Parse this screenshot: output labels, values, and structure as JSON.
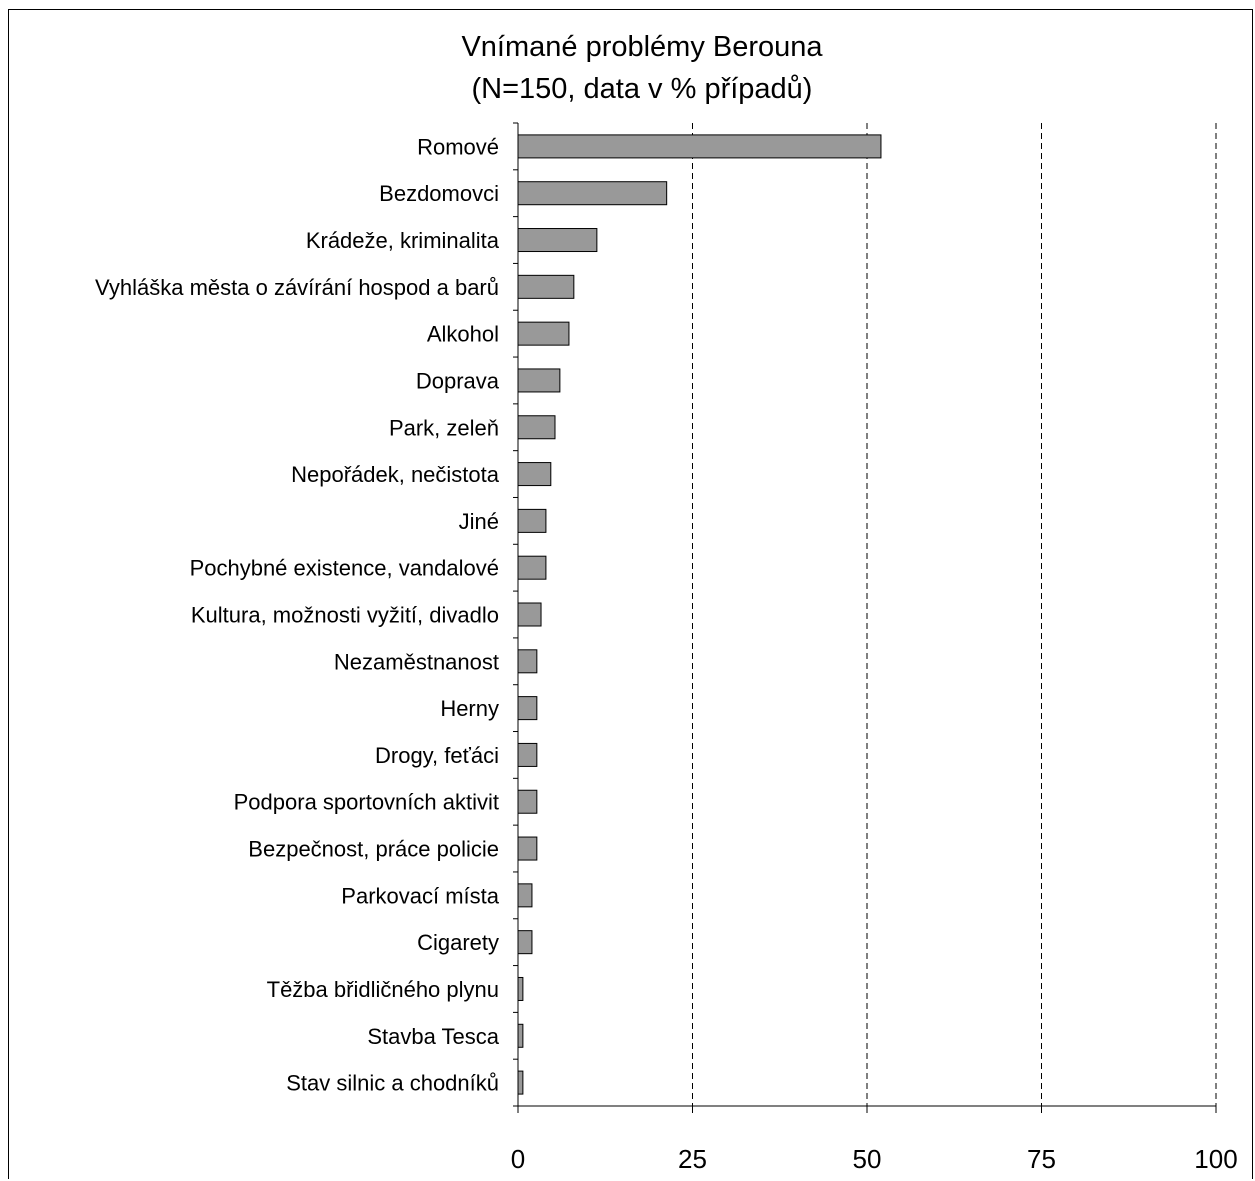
{
  "chart_data": {
    "type": "bar",
    "orientation": "horizontal",
    "title": "Vnímané problémy Berouna",
    "subtitle": "(N=150, data v % případů)",
    "xlabel": "",
    "ylabel": "",
    "xlim": [
      0,
      100
    ],
    "xticks": [
      0,
      25,
      50,
      75,
      100
    ],
    "grid": "vertical dashed",
    "legend": "none",
    "bar_color": "#999999",
    "categories": [
      "Romové",
      "Bezdomovci",
      "Krádeže, kriminalita",
      "Vyhláška města o závírání hospod a barů",
      "Alkohol",
      "Doprava",
      "Park, zeleň",
      "Nepořádek, nečistota",
      "Jiné",
      "Pochybné existence, vandalové",
      "Kultura, možnosti vyžití, divadlo",
      "Nezaměstnanost",
      "Herny",
      "Drogy, feťáci",
      "Podpora sportovních aktivit",
      "Bezpečnost, práce policie",
      "Parkovací místa",
      "Cigarety",
      "Těžba břidličného plynu",
      "Stavba Tesca",
      "Stav silnic a chodníků"
    ],
    "values": [
      52,
      21.3,
      11.3,
      8,
      7.3,
      6,
      5.3,
      4.7,
      4,
      4,
      3.3,
      2.7,
      2.7,
      2.7,
      2.7,
      2.7,
      2,
      2,
      0.7,
      0.7,
      0.7
    ]
  }
}
